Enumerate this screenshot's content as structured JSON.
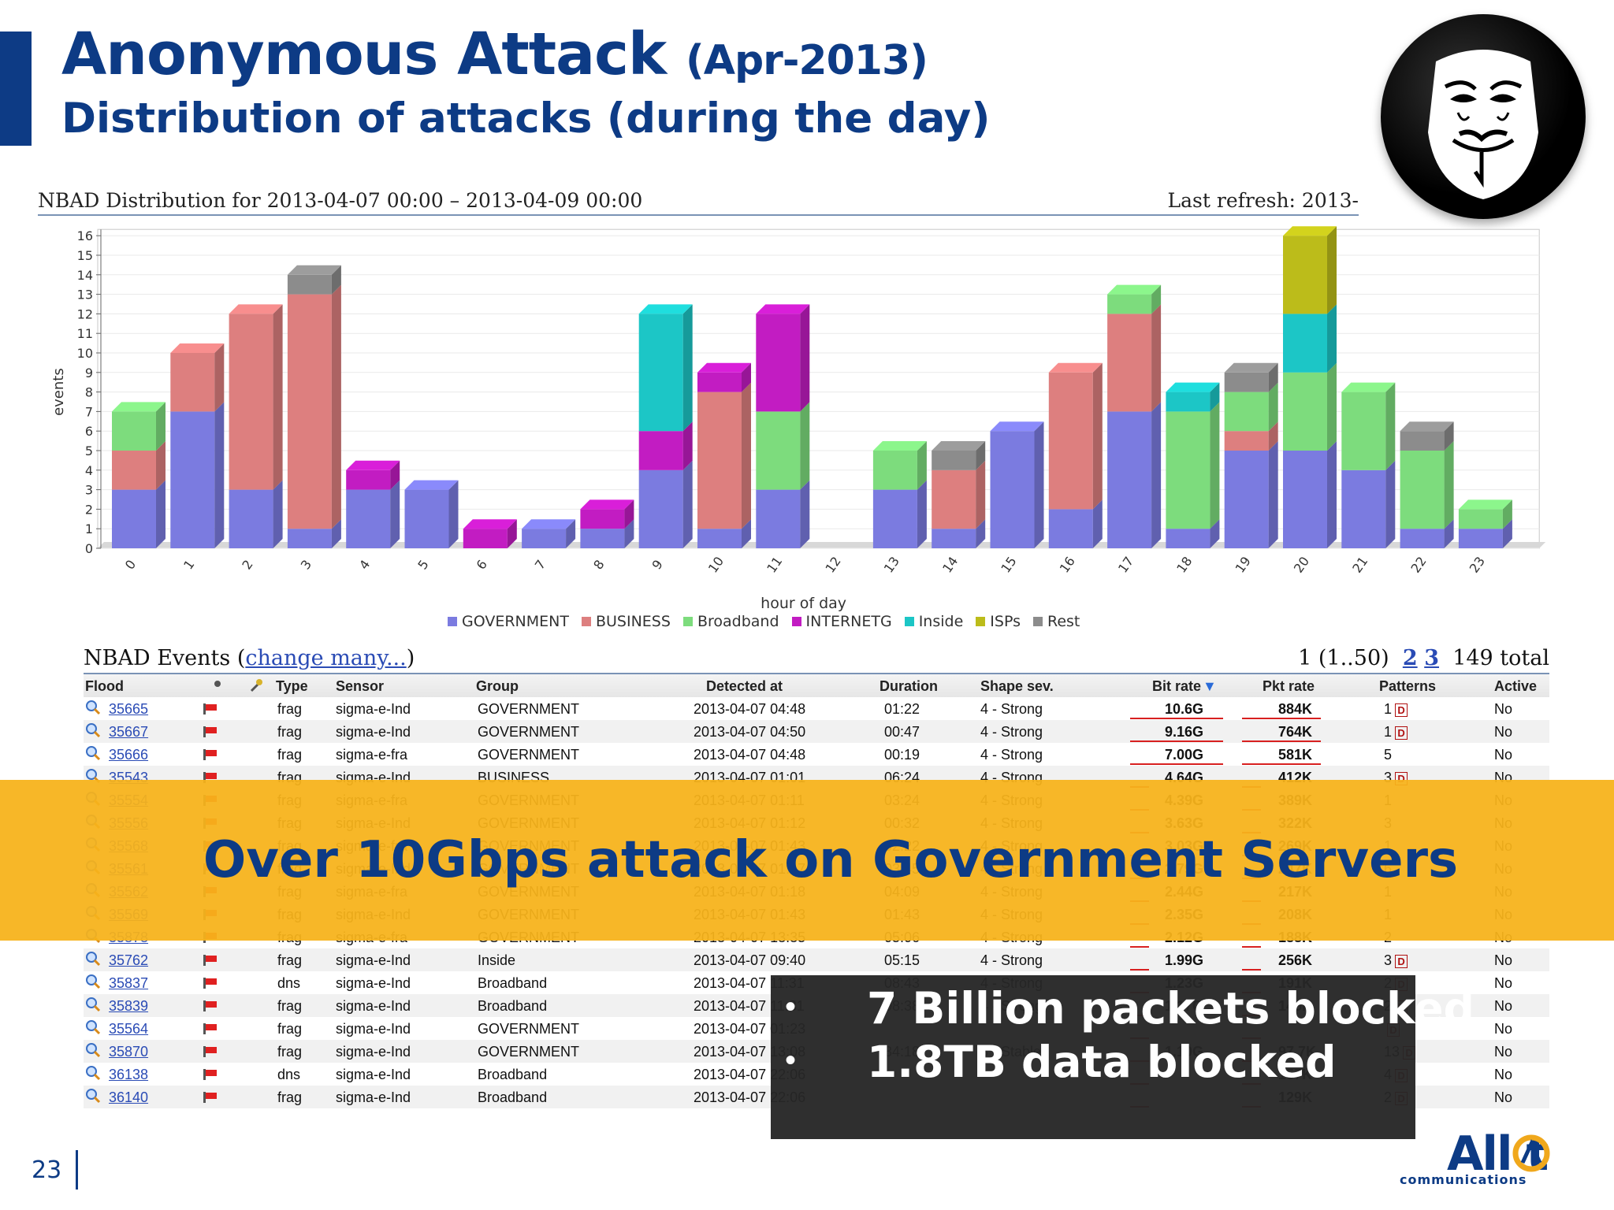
{
  "slide": {
    "title_main": "Anonymous Attack",
    "title_paren": "(Apr-2013)",
    "subtitle": "Distribution of attacks (during the day)",
    "page_number": "23",
    "banner": "Over 10Gbps attack on Government Servers",
    "callouts": [
      "7 Billion packets blocked",
      "1.8TB data blocked"
    ],
    "brand_word": "All t",
    "brand_sub": "communications",
    "accent_color": "#0d3b85",
    "banner_color": "#f7b21b"
  },
  "chart_header": {
    "left": "NBAD Distribution for 2013-04-07 00:00 – 2013-04-09 00:00",
    "right": "Last refresh: 2013-"
  },
  "chart_data": {
    "type": "bar",
    "stacked": true,
    "categories": [
      "0",
      "1",
      "2",
      "3",
      "4",
      "5",
      "6",
      "7",
      "8",
      "9",
      "10",
      "11",
      "12",
      "13",
      "14",
      "15",
      "16",
      "17",
      "18",
      "19",
      "20",
      "21",
      "22",
      "23"
    ],
    "xlabel": "hour of day",
    "ylabel": "events",
    "ylim": [
      0,
      16
    ],
    "yticks": [
      0,
      1,
      2,
      3,
      4,
      5,
      6,
      7,
      8,
      9,
      10,
      11,
      12,
      13,
      14,
      15,
      16
    ],
    "grid": true,
    "legend_position": "bottom",
    "series": [
      {
        "name": "GOVERNMENT",
        "color": "#7b7be0",
        "values": [
          3,
          7,
          3,
          1,
          3,
          3,
          0,
          1,
          1,
          4,
          1,
          3,
          0,
          3,
          1,
          6,
          2,
          7,
          1,
          5,
          5,
          4,
          1,
          1
        ]
      },
      {
        "name": "BUSINESS",
        "color": "#dd7f7f",
        "values": [
          2,
          3,
          9,
          12,
          0,
          0,
          0,
          0,
          0,
          0,
          7,
          0,
          0,
          0,
          3,
          0,
          7,
          5,
          0,
          1,
          0,
          0,
          0,
          0
        ]
      },
      {
        "name": "Broadband",
        "color": "#7ddc7d",
        "values": [
          2,
          0,
          0,
          0,
          0,
          0,
          0,
          0,
          0,
          0,
          0,
          4,
          0,
          2,
          0,
          0,
          0,
          1,
          6,
          2,
          4,
          4,
          4,
          1
        ]
      },
      {
        "name": "INTERNETG",
        "color": "#c21cc2",
        "values": [
          0,
          0,
          0,
          0,
          1,
          0,
          1,
          0,
          1,
          2,
          1,
          5,
          0,
          0,
          0,
          0,
          0,
          0,
          0,
          0,
          0,
          0,
          0,
          0
        ]
      },
      {
        "name": "Inside",
        "color": "#1cc6c6",
        "values": [
          0,
          0,
          0,
          0,
          0,
          0,
          0,
          0,
          0,
          6,
          0,
          0,
          0,
          0,
          0,
          0,
          0,
          0,
          1,
          0,
          3,
          0,
          0,
          0
        ]
      },
      {
        "name": "ISPs",
        "color": "#bcbc1a",
        "values": [
          0,
          0,
          0,
          0,
          0,
          0,
          0,
          0,
          0,
          0,
          0,
          0,
          0,
          0,
          0,
          0,
          0,
          0,
          0,
          0,
          4,
          0,
          0,
          0
        ]
      },
      {
        "name": "Rest",
        "color": "#8c8c8c",
        "values": [
          0,
          0,
          0,
          1,
          0,
          0,
          0,
          0,
          0,
          0,
          0,
          0,
          0,
          0,
          1,
          0,
          0,
          0,
          0,
          1,
          0,
          0,
          1,
          0
        ]
      }
    ]
  },
  "events": {
    "title": "NBAD Events (",
    "change_link": "change many...",
    "title_close": ")",
    "page_info": "1 (1..50)",
    "page_2": "2",
    "page_3": "3",
    "total": "149 total",
    "columns": [
      "Flood",
      "Type",
      "Sensor",
      "Group",
      "Detected at",
      "Duration",
      "Shape sev.",
      "Bit rate",
      "Pkt rate",
      "Patterns",
      "Active"
    ],
    "rows": [
      {
        "flood": "35665",
        "type": "frag",
        "sensor": "sigma-e-Ind",
        "group": "GOVERNMENT",
        "detected": "2013-04-07 04:48",
        "duration": "01:22",
        "shape": "4 - Strong",
        "bit": "10.6G",
        "pkt": "884K",
        "patterns": "1",
        "d": true,
        "active": "No"
      },
      {
        "flood": "35667",
        "type": "frag",
        "sensor": "sigma-e-Ind",
        "group": "GOVERNMENT",
        "detected": "2013-04-07 04:50",
        "duration": "00:47",
        "shape": "4 - Strong",
        "bit": "9.16G",
        "pkt": "764K",
        "patterns": "1",
        "d": true,
        "active": "No"
      },
      {
        "flood": "35666",
        "type": "frag",
        "sensor": "sigma-e-fra",
        "group": "GOVERNMENT",
        "detected": "2013-04-07 04:48",
        "duration": "00:19",
        "shape": "4 - Strong",
        "bit": "7.00G",
        "pkt": "581K",
        "patterns": "5",
        "d": false,
        "active": "No"
      },
      {
        "flood": "35543",
        "type": "frag",
        "sensor": "sigma-e-Ind",
        "group": "BUSINESS",
        "detected": "2013-04-07 01:01",
        "duration": "06:24",
        "shape": "4 - Strong",
        "bit": "4.64G",
        "pkt": "412K",
        "patterns": "3",
        "d": true,
        "active": "No"
      },
      {
        "flood": "35554",
        "type": "frag",
        "sensor": "sigma-e-fra",
        "group": "GOVERNMENT",
        "detected": "2013-04-07 01:11",
        "duration": "03:24",
        "shape": "4 - Strong",
        "bit": "4.39G",
        "pkt": "389K",
        "patterns": "1",
        "d": false,
        "active": "No"
      },
      {
        "flood": "35556",
        "type": "frag",
        "sensor": "sigma-e-Ind",
        "group": "GOVERNMENT",
        "detected": "2013-04-07 01:12",
        "duration": "00:32",
        "shape": "4 - Strong",
        "bit": "3.63G",
        "pkt": "322K",
        "patterns": "3",
        "d": false,
        "active": "No"
      },
      {
        "flood": "35568",
        "type": "frag",
        "sensor": "sigma-e-fra",
        "group": "GOVERNMENT",
        "detected": "2013-04-07 01:43",
        "duration": "02:22",
        "shape": "4 - Strong",
        "bit": "3.03G",
        "pkt": "269K",
        "patterns": "1",
        "d": false,
        "active": "No"
      },
      {
        "flood": "35561",
        "type": "frag",
        "sensor": "sigma-e-Ind",
        "group": "GOVERNMENT",
        "detected": "2013-04-07 01:17",
        "duration": "03:45",
        "shape": "4 - Strong",
        "bit": "2.79G",
        "pkt": "247K",
        "patterns": "6",
        "d": false,
        "active": "No"
      },
      {
        "flood": "35562",
        "type": "frag",
        "sensor": "sigma-e-fra",
        "group": "GOVERNMENT",
        "detected": "2013-04-07 01:18",
        "duration": "04:09",
        "shape": "4 - Strong",
        "bit": "2.44G",
        "pkt": "217K",
        "patterns": "1",
        "d": false,
        "active": "No"
      },
      {
        "flood": "35569",
        "type": "frag",
        "sensor": "sigma-e-Ind",
        "group": "GOVERNMENT",
        "detected": "2013-04-07 01:43",
        "duration": "01:43",
        "shape": "4 - Strong",
        "bit": "2.35G",
        "pkt": "208K",
        "patterns": "1",
        "d": false,
        "active": "No"
      },
      {
        "flood": "35878",
        "type": "frag",
        "sensor": "sigma-e-fra",
        "group": "GOVERNMENT",
        "detected": "2013-04-07 13:35",
        "duration": "05:06",
        "shape": "4 - Strong",
        "bit": "2.12G",
        "pkt": "188K",
        "patterns": "2",
        "d": false,
        "active": "No"
      },
      {
        "flood": "35762",
        "type": "frag",
        "sensor": "sigma-e-Ind",
        "group": "Inside",
        "detected": "2013-04-07 09:40",
        "duration": "05:15",
        "shape": "4 - Strong",
        "bit": "1.99G",
        "pkt": "256K",
        "patterns": "3",
        "d": true,
        "active": "No"
      },
      {
        "flood": "35837",
        "type": "dns",
        "sensor": "sigma-e-Ind",
        "group": "Broadband",
        "detected": "2013-04-07 11:31",
        "duration": "08:43",
        "shape": "4 - Strong",
        "bit": "1.23G",
        "pkt": "191K",
        "patterns": "2",
        "d": true,
        "active": "No"
      },
      {
        "flood": "35839",
        "type": "frag",
        "sensor": "sigma-e-Ind",
        "group": "Broadband",
        "detected": "2013-04-07 11:31",
        "duration": "08:38",
        "shape": "4 - Strong",
        "bit": "1.17G",
        "pkt": "145K",
        "patterns": "2",
        "d": true,
        "active": "No"
      },
      {
        "flood": "35564",
        "type": "frag",
        "sensor": "sigma-e-Ind",
        "group": "GOVERNMENT",
        "detected": "2013-04-07 01:23",
        "duration": "",
        "shape": "",
        "bit": "",
        "pkt": "",
        "patterns": "",
        "d": true,
        "active": "No"
      },
      {
        "flood": "35870",
        "type": "frag",
        "sensor": "sigma-e-Ind",
        "group": "GOVERNMENT",
        "detected": "2013-04-07 13:08",
        "duration": "34:18",
        "shape": "3 - Stable",
        "bit": "1.10G",
        "pkt": "97.7K",
        "patterns": "13",
        "d": true,
        "active": "No"
      },
      {
        "flood": "36138",
        "type": "dns",
        "sensor": "sigma-e-Ind",
        "group": "Broadband",
        "detected": "2013-04-07 22:06",
        "duration": "",
        "shape": "",
        "bit": "",
        "pkt": "157K",
        "patterns": "4",
        "d": true,
        "active": "No"
      },
      {
        "flood": "36140",
        "type": "frag",
        "sensor": "sigma-e-Ind",
        "group": "Broadband",
        "detected": "2013-04-07 22:06",
        "duration": "",
        "shape": "",
        "bit": "",
        "pkt": "129K",
        "patterns": "2",
        "d": true,
        "active": "No"
      }
    ]
  }
}
